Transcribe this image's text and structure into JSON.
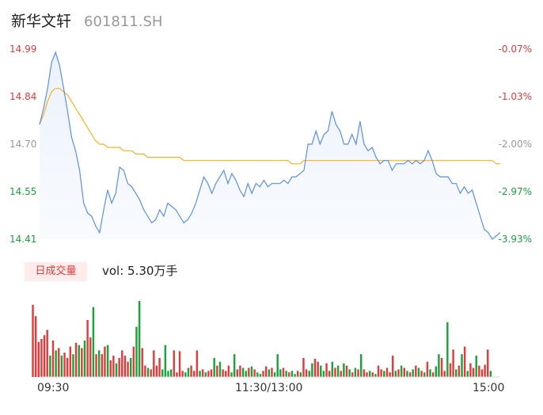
{
  "stock": {
    "name": "新华文轩",
    "code": "601811.SH"
  },
  "colors": {
    "up": "#e23b3b",
    "down": "#1aa33a",
    "neutral": "#999999",
    "price_line": "#5b8fe8",
    "avg_line": "#f7b21f"
  },
  "price_axis": [
    {
      "label": "14.99",
      "color": "#e23b3b"
    },
    {
      "label": "14.84",
      "color": "#e23b3b"
    },
    {
      "label": "14.70",
      "color": "#999999"
    },
    {
      "label": "14.55",
      "color": "#1aa33a"
    },
    {
      "label": "14.41",
      "color": "#1aa33a"
    }
  ],
  "pct_axis": [
    {
      "label": "-0.07%",
      "color": "#e23b3b"
    },
    {
      "label": "-1.03%",
      "color": "#e23b3b"
    },
    {
      "label": "-2.00%",
      "color": "#999999"
    },
    {
      "label": "-2.97%",
      "color": "#1aa33a"
    },
    {
      "label": "-3.93%",
      "color": "#1aa33a"
    }
  ],
  "volume": {
    "tag": "日成交量",
    "label": "vol: 5.30万手"
  },
  "time_axis": [
    "09:30",
    "11:30/13:00",
    "15:00"
  ],
  "chart_data": {
    "type": "line",
    "ylim": [
      14.41,
      14.99
    ],
    "price": [
      14.76,
      14.81,
      14.87,
      14.95,
      14.98,
      14.94,
      14.87,
      14.8,
      14.72,
      14.68,
      14.62,
      14.52,
      14.49,
      14.48,
      14.45,
      14.43,
      14.5,
      14.56,
      14.52,
      14.55,
      14.63,
      14.62,
      14.58,
      14.57,
      14.55,
      14.53,
      14.5,
      14.48,
      14.46,
      14.47,
      14.5,
      14.48,
      14.52,
      14.51,
      14.5,
      14.48,
      14.46,
      14.47,
      14.49,
      14.52,
      14.56,
      14.6,
      14.58,
      14.55,
      14.58,
      14.6,
      14.62,
      14.58,
      14.61,
      14.59,
      14.56,
      14.54,
      14.58,
      14.55,
      14.58,
      14.57,
      14.59,
      14.57,
      14.58,
      14.58,
      14.58,
      14.59,
      14.58,
      14.6,
      14.6,
      14.61,
      14.62,
      14.7,
      14.7,
      14.74,
      14.7,
      14.73,
      14.74,
      14.8,
      14.76,
      14.74,
      14.7,
      14.7,
      14.73,
      14.7,
      14.77,
      14.7,
      14.68,
      14.69,
      14.66,
      14.64,
      14.65,
      14.65,
      14.62,
      14.64,
      14.64,
      14.64,
      14.65,
      14.64,
      14.65,
      14.64,
      14.65,
      14.68,
      14.65,
      14.61,
      14.6,
      14.6,
      14.6,
      14.58,
      14.58,
      14.55,
      14.57,
      14.55,
      14.56,
      14.52,
      14.48,
      14.44,
      14.43,
      14.41,
      14.42,
      14.43
    ],
    "avg": [
      14.76,
      14.79,
      14.83,
      14.86,
      14.87,
      14.87,
      14.86,
      14.85,
      14.83,
      14.81,
      14.79,
      14.77,
      14.75,
      14.73,
      14.71,
      14.7,
      14.7,
      14.69,
      14.69,
      14.69,
      14.69,
      14.68,
      14.68,
      14.68,
      14.67,
      14.67,
      14.67,
      14.66,
      14.66,
      14.66,
      14.66,
      14.66,
      14.66,
      14.66,
      14.66,
      14.66,
      14.65,
      14.65,
      14.65,
      14.65,
      14.65,
      14.65,
      14.65,
      14.65,
      14.65,
      14.65,
      14.65,
      14.65,
      14.65,
      14.65,
      14.65,
      14.65,
      14.65,
      14.65,
      14.65,
      14.65,
      14.65,
      14.65,
      14.65,
      14.65,
      14.65,
      14.65,
      14.65,
      14.64,
      14.64,
      14.64,
      14.65,
      14.65,
      14.65,
      14.65,
      14.65,
      14.65,
      14.65,
      14.65,
      14.65,
      14.65,
      14.65,
      14.65,
      14.65,
      14.65,
      14.65,
      14.65,
      14.65,
      14.65,
      14.65,
      14.65,
      14.65,
      14.65,
      14.65,
      14.65,
      14.65,
      14.65,
      14.65,
      14.65,
      14.65,
      14.65,
      14.65,
      14.65,
      14.65,
      14.65,
      14.65,
      14.65,
      14.65,
      14.65,
      14.65,
      14.65,
      14.65,
      14.65,
      14.65,
      14.65,
      14.65,
      14.65,
      14.65,
      14.65,
      14.64,
      14.64
    ],
    "volume_bars": [
      {
        "v": 0.95,
        "up": true
      },
      {
        "v": 0.8,
        "up": true
      },
      {
        "v": 0.46,
        "up": true
      },
      {
        "v": 0.5,
        "up": true
      },
      {
        "v": 0.55,
        "up": true
      },
      {
        "v": 0.62,
        "up": true
      },
      {
        "v": 0.28,
        "up": false
      },
      {
        "v": 0.48,
        "up": true
      },
      {
        "v": 0.35,
        "up": false
      },
      {
        "v": 0.38,
        "up": true
      },
      {
        "v": 0.28,
        "up": false
      },
      {
        "v": 0.32,
        "up": true
      },
      {
        "v": 0.25,
        "up": true
      },
      {
        "v": 0.4,
        "up": true
      },
      {
        "v": 0.3,
        "up": false
      },
      {
        "v": 0.45,
        "up": true
      },
      {
        "v": 0.42,
        "up": false
      },
      {
        "v": 0.38,
        "up": true
      },
      {
        "v": 0.48,
        "up": false
      },
      {
        "v": 0.75,
        "up": true
      },
      {
        "v": 0.52,
        "up": true
      },
      {
        "v": 0.92,
        "up": false
      },
      {
        "v": 0.3,
        "up": true
      },
      {
        "v": 0.35,
        "up": false
      },
      {
        "v": 0.3,
        "up": true
      },
      {
        "v": 0.4,
        "up": true
      },
      {
        "v": 0.42,
        "up": false
      },
      {
        "v": 0.22,
        "up": true
      },
      {
        "v": 0.28,
        "up": true
      },
      {
        "v": 0.18,
        "up": false
      },
      {
        "v": 0.25,
        "up": true
      },
      {
        "v": 0.35,
        "up": true
      },
      {
        "v": 0.28,
        "up": true
      },
      {
        "v": 0.2,
        "up": true
      },
      {
        "v": 0.25,
        "up": false
      },
      {
        "v": 0.4,
        "up": true
      },
      {
        "v": 0.66,
        "up": false
      },
      {
        "v": 1.0,
        "up": false
      },
      {
        "v": 0.38,
        "up": true
      },
      {
        "v": 0.15,
        "up": true
      },
      {
        "v": 0.12,
        "up": false
      },
      {
        "v": 0.1,
        "up": true
      },
      {
        "v": 0.35,
        "up": true
      },
      {
        "v": 0.15,
        "up": true
      },
      {
        "v": 0.25,
        "up": true
      },
      {
        "v": 0.1,
        "up": false
      },
      {
        "v": 0.42,
        "up": false
      },
      {
        "v": 0.08,
        "up": false
      },
      {
        "v": 0.1,
        "up": false
      },
      {
        "v": 0.35,
        "up": true
      },
      {
        "v": 0.06,
        "up": true
      },
      {
        "v": 0.34,
        "up": true
      },
      {
        "v": 0.08,
        "up": true
      },
      {
        "v": 0.06,
        "up": false
      },
      {
        "v": 0.12,
        "up": false
      },
      {
        "v": 0.15,
        "up": true
      },
      {
        "v": 0.08,
        "up": true
      },
      {
        "v": 0.35,
        "up": true
      },
      {
        "v": 0.08,
        "up": false
      },
      {
        "v": 0.1,
        "up": true
      },
      {
        "v": 0.06,
        "up": false
      },
      {
        "v": 0.08,
        "up": true
      },
      {
        "v": 0.1,
        "up": true
      },
      {
        "v": 0.25,
        "up": false
      },
      {
        "v": 0.15,
        "up": true
      },
      {
        "v": 0.2,
        "up": false
      },
      {
        "v": 0.1,
        "up": true
      },
      {
        "v": 0.08,
        "up": true
      },
      {
        "v": 0.15,
        "up": true
      },
      {
        "v": 0.06,
        "up": false
      },
      {
        "v": 0.3,
        "up": false
      },
      {
        "v": 0.1,
        "up": true
      },
      {
        "v": 0.15,
        "up": true
      },
      {
        "v": 0.12,
        "up": false
      },
      {
        "v": 0.08,
        "up": false
      },
      {
        "v": 0.12,
        "up": true
      },
      {
        "v": 0.14,
        "up": false
      },
      {
        "v": 0.1,
        "up": true
      },
      {
        "v": 0.06,
        "up": false
      },
      {
        "v": 0.04,
        "up": false
      },
      {
        "v": 0.08,
        "up": true
      },
      {
        "v": 0.14,
        "up": true
      },
      {
        "v": 0.1,
        "up": false
      },
      {
        "v": 0.12,
        "up": true
      },
      {
        "v": 0.06,
        "up": false
      },
      {
        "v": 0.3,
        "up": false
      },
      {
        "v": 0.1,
        "up": false
      },
      {
        "v": 0.12,
        "up": true
      },
      {
        "v": 0.08,
        "up": false
      },
      {
        "v": 0.06,
        "up": true
      },
      {
        "v": 0.08,
        "up": false
      },
      {
        "v": 0.04,
        "up": false
      },
      {
        "v": 0.08,
        "up": true
      },
      {
        "v": 0.06,
        "up": false
      },
      {
        "v": 0.25,
        "up": true
      },
      {
        "v": 0.1,
        "up": true
      },
      {
        "v": 0.08,
        "up": false
      },
      {
        "v": 0.18,
        "up": false
      },
      {
        "v": 0.24,
        "up": true
      },
      {
        "v": 0.2,
        "up": true
      },
      {
        "v": 0.15,
        "up": false
      },
      {
        "v": 0.08,
        "up": false
      },
      {
        "v": 0.18,
        "up": true
      },
      {
        "v": 0.08,
        "up": true
      },
      {
        "v": 0.2,
        "up": false
      },
      {
        "v": 0.12,
        "up": true
      },
      {
        "v": 0.15,
        "up": false
      },
      {
        "v": 0.08,
        "up": true
      },
      {
        "v": 0.18,
        "up": false
      },
      {
        "v": 0.15,
        "up": true
      },
      {
        "v": 0.1,
        "up": false
      },
      {
        "v": 0.06,
        "up": true
      },
      {
        "v": 0.12,
        "up": false
      },
      {
        "v": 0.1,
        "up": true
      },
      {
        "v": 0.3,
        "up": false
      },
      {
        "v": 0.1,
        "up": true
      },
      {
        "v": 0.06,
        "up": true
      },
      {
        "v": 0.08,
        "up": false
      },
      {
        "v": 0.06,
        "up": true
      },
      {
        "v": 0.04,
        "up": false
      },
      {
        "v": 0.15,
        "up": true
      },
      {
        "v": 0.1,
        "up": true
      },
      {
        "v": 0.08,
        "up": false
      },
      {
        "v": 0.12,
        "up": true
      },
      {
        "v": 0.06,
        "up": true
      },
      {
        "v": 0.28,
        "up": true
      },
      {
        "v": 0.08,
        "up": false
      },
      {
        "v": 0.1,
        "up": true
      },
      {
        "v": 0.15,
        "up": false
      },
      {
        "v": 0.12,
        "up": true
      },
      {
        "v": 0.08,
        "up": false
      },
      {
        "v": 0.06,
        "up": true
      },
      {
        "v": 0.1,
        "up": false
      },
      {
        "v": 0.15,
        "up": true
      },
      {
        "v": 0.12,
        "up": false
      },
      {
        "v": 0.08,
        "up": true
      },
      {
        "v": 0.06,
        "up": false
      },
      {
        "v": 0.2,
        "up": true
      },
      {
        "v": 0.1,
        "up": false
      },
      {
        "v": 0.06,
        "up": true
      },
      {
        "v": 0.14,
        "up": false
      },
      {
        "v": 0.3,
        "up": false
      },
      {
        "v": 0.25,
        "up": true
      },
      {
        "v": 0.08,
        "up": true
      },
      {
        "v": 0.72,
        "up": false
      },
      {
        "v": 0.18,
        "up": true
      },
      {
        "v": 0.36,
        "up": true
      },
      {
        "v": 0.1,
        "up": false
      },
      {
        "v": 0.15,
        "up": true
      },
      {
        "v": 0.3,
        "up": false
      },
      {
        "v": 0.4,
        "up": true
      },
      {
        "v": 0.08,
        "up": false
      },
      {
        "v": 0.18,
        "up": true
      },
      {
        "v": 0.12,
        "up": true
      },
      {
        "v": 0.28,
        "up": false
      },
      {
        "v": 0.15,
        "up": true
      },
      {
        "v": 0.1,
        "up": true
      },
      {
        "v": 0.16,
        "up": true
      },
      {
        "v": 0.36,
        "up": true
      },
      {
        "v": 0.08,
        "up": false
      }
    ]
  }
}
